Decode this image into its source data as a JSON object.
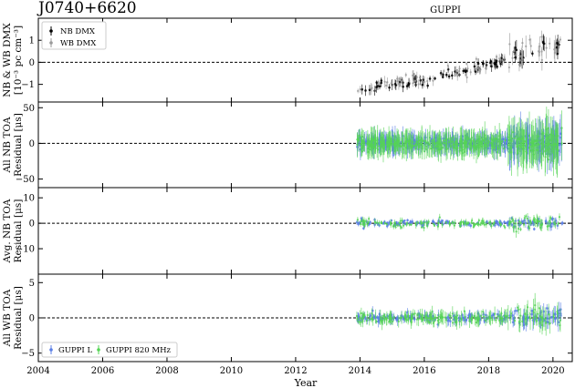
{
  "chart_data": {
    "type": "scatter",
    "title": "J0740+6620",
    "subtitle": "GUPPI",
    "xlabel": "Year",
    "xlim": [
      2004,
      2020.6
    ],
    "x_ticks": [
      "2004",
      "2006",
      "2008",
      "2010",
      "2012",
      "2014",
      "2016",
      "2018",
      "2020"
    ],
    "colors": {
      "nb_dmx": "#000000",
      "wb_dmx": "#9a9a9a",
      "guppi_l": "#5b7fe6",
      "guppi_820": "#55d455"
    },
    "panels": [
      {
        "ylabel_lines": [
          "NB & WB DMX",
          "[10⁻³ pc cm⁻³]"
        ],
        "ylim": [
          -1.8,
          2.0
        ],
        "y_ticks": [
          "−1",
          "0",
          "1"
        ],
        "y_tick_values": [
          -1,
          0,
          1
        ],
        "legend": [
          "NB DMX",
          "WB DMX"
        ],
        "series": [
          {
            "name": "NB DMX",
            "color": "#000000",
            "trend": [
              [
                2013.9,
                -1.2
              ],
              [
                2015.0,
                -1.0
              ],
              [
                2016.0,
                -0.8
              ],
              [
                2017.0,
                -0.5
              ],
              [
                2018.0,
                -0.1
              ],
              [
                2019.0,
                0.35
              ],
              [
                2020.3,
                0.95
              ]
            ],
            "spread": 0.12,
            "err": 0.18,
            "n": 90
          },
          {
            "name": "WB DMX",
            "color": "#9a9a9a",
            "trend": [
              [
                2013.9,
                -1.15
              ],
              [
                2015.0,
                -0.95
              ],
              [
                2016.0,
                -0.75
              ],
              [
                2017.0,
                -0.45
              ],
              [
                2018.0,
                -0.05
              ],
              [
                2019.0,
                0.4
              ],
              [
                2020.3,
                1.0
              ]
            ],
            "spread": 0.15,
            "err": 0.2,
            "n": 80
          }
        ]
      },
      {
        "ylabel_lines": [
          "All NB TOA",
          "Residual [μs]"
        ],
        "ylim": [
          -62,
          58
        ],
        "y_ticks": [
          "−50",
          "0",
          "50"
        ],
        "y_tick_values": [
          -50,
          0,
          50
        ],
        "legend": [],
        "series": [
          {
            "name": "GUPPI L",
            "color": "#5b7fe6",
            "trend": [
              [
                2013.9,
                0
              ],
              [
                2020.3,
                0
              ]
            ],
            "spread": 4,
            "err": 12,
            "n": 420
          },
          {
            "name": "GUPPI 820 MHz",
            "color": "#55d455",
            "trend": [
              [
                2013.9,
                0
              ],
              [
                2020.3,
                0
              ]
            ],
            "spread": 5,
            "err": 14,
            "n": 420
          }
        ]
      },
      {
        "ylabel_lines": [
          "Avg. NB TOA",
          "Residual [μs]"
        ],
        "ylim": [
          -20,
          14
        ],
        "y_ticks": [
          "−10",
          "0",
          "10"
        ],
        "y_tick_values": [
          -10,
          0,
          10
        ],
        "legend": [],
        "series": [
          {
            "name": "GUPPI L",
            "color": "#5b7fe6",
            "trend": [
              [
                2013.9,
                0
              ],
              [
                2020.3,
                0
              ]
            ],
            "spread": 0.6,
            "err": 0.8,
            "n": 160
          },
          {
            "name": "GUPPI 820 MHz",
            "color": "#55d455",
            "trend": [
              [
                2013.9,
                0
              ],
              [
                2020.3,
                0
              ]
            ],
            "spread": 0.7,
            "err": 1.0,
            "n": 160
          }
        ]
      },
      {
        "ylabel_lines": [
          "All WB TOA",
          "Residual [μs]"
        ],
        "ylim": [
          -6.2,
          6.2
        ],
        "y_ticks": [
          "−5",
          "0",
          "5"
        ],
        "y_tick_values": [
          -5,
          0,
          5
        ],
        "legend": [
          "GUPPI L",
          "GUPPI 820 MHz"
        ],
        "series": [
          {
            "name": "GUPPI L",
            "color": "#5b7fe6",
            "trend": [
              [
                2013.9,
                0
              ],
              [
                2020.3,
                0
              ]
            ],
            "spread": 0.3,
            "err": 0.6,
            "n": 200
          },
          {
            "name": "GUPPI 820 MHz",
            "color": "#55d455",
            "trend": [
              [
                2013.9,
                0
              ],
              [
                2020.3,
                0
              ]
            ],
            "spread": 0.35,
            "err": 0.8,
            "n": 200
          }
        ]
      }
    ]
  }
}
